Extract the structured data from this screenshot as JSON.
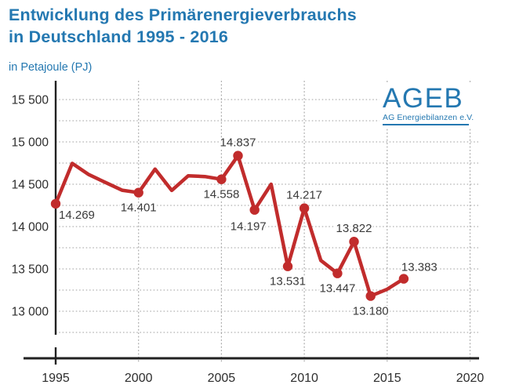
{
  "header": {
    "title_line1": "Entwicklung des Primärenergieverbrauchs",
    "title_line2": "in Deutschland 1995 - 2016",
    "subtitle": "in Petajoule (PJ)",
    "title_color": "#2478b1"
  },
  "logo": {
    "name": "AGEB",
    "subtitle": "AG Energiebilanzen e.V.",
    "color": "#2478b1"
  },
  "chart_data": {
    "type": "line",
    "title": "Entwicklung des Primärenergieverbrauchs in Deutschland 1995 - 2016",
    "ylabel": "Petajoule (PJ)",
    "xlabel": "",
    "grid": true,
    "legend": "none",
    "line_color": "#c12c2c",
    "marker_color": "#c12c2c",
    "xlim": [
      1995,
      2020
    ],
    "ylim": [
      12750,
      15650
    ],
    "x": [
      1995,
      1996,
      1997,
      1998,
      1999,
      2000,
      2001,
      2002,
      2003,
      2004,
      2005,
      2006,
      2007,
      2008,
      2009,
      2010,
      2011,
      2012,
      2013,
      2014,
      2015,
      2016
    ],
    "values": [
      14269,
      14746,
      14614,
      14521,
      14430,
      14401,
      14679,
      14427,
      14600,
      14591,
      14558,
      14837,
      14197,
      14500,
      13531,
      14217,
      13600,
      13447,
      13822,
      13180,
      13260,
      13383
    ],
    "y_ticks": [
      {
        "value": 15500,
        "label": "15 500"
      },
      {
        "value": 15000,
        "label": "15 000"
      },
      {
        "value": 14500,
        "label": "14 500"
      },
      {
        "value": 14000,
        "label": "14 000"
      },
      {
        "value": 13500,
        "label": "13 500"
      },
      {
        "value": 13000,
        "label": "13 000"
      }
    ],
    "x_ticks": [
      1995,
      2000,
      2005,
      2010,
      2015,
      2020
    ],
    "point_labels": [
      {
        "year": 1995,
        "text": "14.269",
        "pos": "below-right"
      },
      {
        "year": 2000,
        "text": "14.401",
        "pos": "below"
      },
      {
        "year": 2005,
        "text": "14.558",
        "pos": "below"
      },
      {
        "year": 2006,
        "text": "14.837",
        "pos": "above"
      },
      {
        "year": 2007,
        "text": "14.197",
        "pos": "below-left"
      },
      {
        "year": 2009,
        "text": "13.531",
        "pos": "below"
      },
      {
        "year": 2010,
        "text": "14.217",
        "pos": "above"
      },
      {
        "year": 2012,
        "text": "13.447",
        "pos": "below"
      },
      {
        "year": 2013,
        "text": "13.822",
        "pos": "above"
      },
      {
        "year": 2014,
        "text": "13.180",
        "pos": "below"
      },
      {
        "year": 2016,
        "text": "13.383",
        "pos": "above-right"
      }
    ]
  }
}
